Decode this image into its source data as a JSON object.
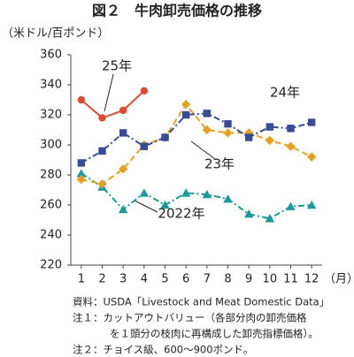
{
  "chart_data": {
    "type": "line",
    "title": "図２　牛肉卸売価格の推移",
    "y_label": "（米ドル/百ポンド）",
    "x_label": "（月）",
    "categories": [
      "1",
      "2",
      "3",
      "4",
      "5",
      "6",
      "7",
      "8",
      "9",
      "10",
      "11",
      "12"
    ],
    "ylim": [
      220,
      360
    ],
    "yticks": [
      220,
      240,
      260,
      280,
      300,
      320,
      340,
      360
    ],
    "series": [
      {
        "name": "2022年",
        "color": "#1a9a9a",
        "marker": "triangle",
        "dash": "dashdot",
        "values": [
          281,
          272,
          257,
          268,
          260,
          268,
          267,
          264,
          254,
          251,
          259,
          260
        ]
      },
      {
        "name": "23年",
        "color": "#e8a020",
        "marker": "diamond",
        "dash": "dashed",
        "values": [
          277,
          274,
          284,
          300,
          305,
          327,
          310,
          308,
          308,
          303,
          299,
          292
        ]
      },
      {
        "name": "24年",
        "color": "#3a4a9a",
        "marker": "square",
        "dash": "dashdot",
        "values": [
          288,
          296,
          308,
          299,
          305,
          320,
          321,
          314,
          305,
          312,
          311,
          315
        ]
      },
      {
        "name": "25年",
        "color": "#e04a30",
        "marker": "circle",
        "dash": "solid",
        "values": [
          330,
          318,
          323,
          336,
          null,
          null,
          null,
          null,
          null,
          null,
          null,
          null
        ]
      }
    ],
    "notes": [
      "資料：USDA「Livestock and Meat Domestic Data」",
      "注１：カットアウトバリュー（各部分肉の卸売価格",
      "を１頭分の枝肉に再構成した卸売指標価格）。",
      "注２：チョイス級、600～900ポンド。"
    ]
  }
}
